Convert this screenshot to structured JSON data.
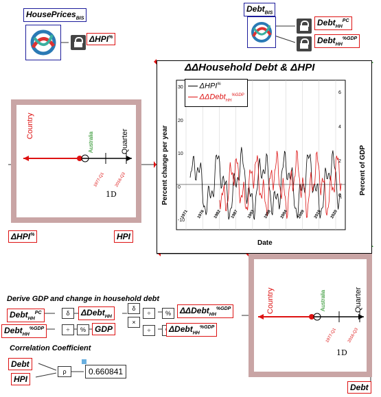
{
  "house_prices": {
    "label": "HousePrices",
    "sub": "BIS"
  },
  "debt_source": {
    "label": "Debt",
    "sub": "BIS"
  },
  "dhpi_top": {
    "label": "ΔHPI",
    "sup": "%"
  },
  "debt_hh_pc": {
    "label": "Debt",
    "sub": "HH",
    "sup": "PC"
  },
  "debt_hh_gdp": {
    "label": "Debt",
    "sub": "HH",
    "sup": "%GDP"
  },
  "ravel_left": {
    "country": "Country",
    "australia": "Australia",
    "quarter": "Quarter",
    "date_a": "1977-Q1",
    "date_b": "2016-Q3",
    "dim": "1D"
  },
  "dhpi_bottom": {
    "label": "ΔHPI",
    "sup": "%"
  },
  "hpi_out": {
    "label": "HPI"
  },
  "plot": {
    "title": "ΔΔHousehold Debt & ΔHPI",
    "legend1": "ΔHPI",
    "legend1_sup": "%",
    "legend2": "ΔΔDebt",
    "legend2_sub": "HH",
    "legend2_sup": "%GDP",
    "ylabel_left": "Percent change per year",
    "ylabel_right": "Percent of GDP",
    "xlabel": "Date",
    "left_ticks": [
      "30",
      "20",
      "10",
      "0",
      "-10"
    ],
    "right_ticks": [
      "6",
      "4",
      "2",
      "0"
    ],
    "x_ticks": [
      "1971",
      "1976",
      "1982",
      "1987",
      "1993",
      "1998",
      "2004",
      "2009",
      "2015",
      "2020"
    ]
  },
  "derive_title": "Derive GDP and change in household debt",
  "derive": {
    "debt_hh_pc": {
      "label": "Debt",
      "sub": "HH",
      "sup": "PC"
    },
    "debt_hh_gdp": {
      "label": "Debt",
      "sub": "HH",
      "sup": "%GDP"
    },
    "ddebt_hh": {
      "label": "ΔDebt",
      "sub": "HH"
    },
    "gdp": {
      "label": "GDP"
    },
    "ddebt_gdp": {
      "label": "ΔDebt",
      "sub": "HH",
      "sup": "%GDP"
    },
    "dddebt_gdp": {
      "label": "ΔΔDebt",
      "sub": "HH",
      "sup": "%GDP"
    },
    "op_delta": "δ",
    "op_pct": "%",
    "op_mul": "×",
    "op_div": "÷"
  },
  "corr_title": "Correlation Coefficient",
  "corr": {
    "debt": "Debt",
    "hpi": "HPI",
    "rho": "ρ",
    "value": "0.660841"
  },
  "ravel_right": {
    "country": "Country",
    "australia": "Australia",
    "quarter": "Quarter",
    "date_a": "1977-Q1",
    "date_b": "2016-Q3",
    "dim": "1D"
  },
  "debt_out": {
    "label": "Debt"
  },
  "colors": {
    "accent_red": "#dd1111",
    "border_blue": "#1a1a9a",
    "ravel_frame": "#c9a5a5",
    "green": "#1a8a1a"
  }
}
